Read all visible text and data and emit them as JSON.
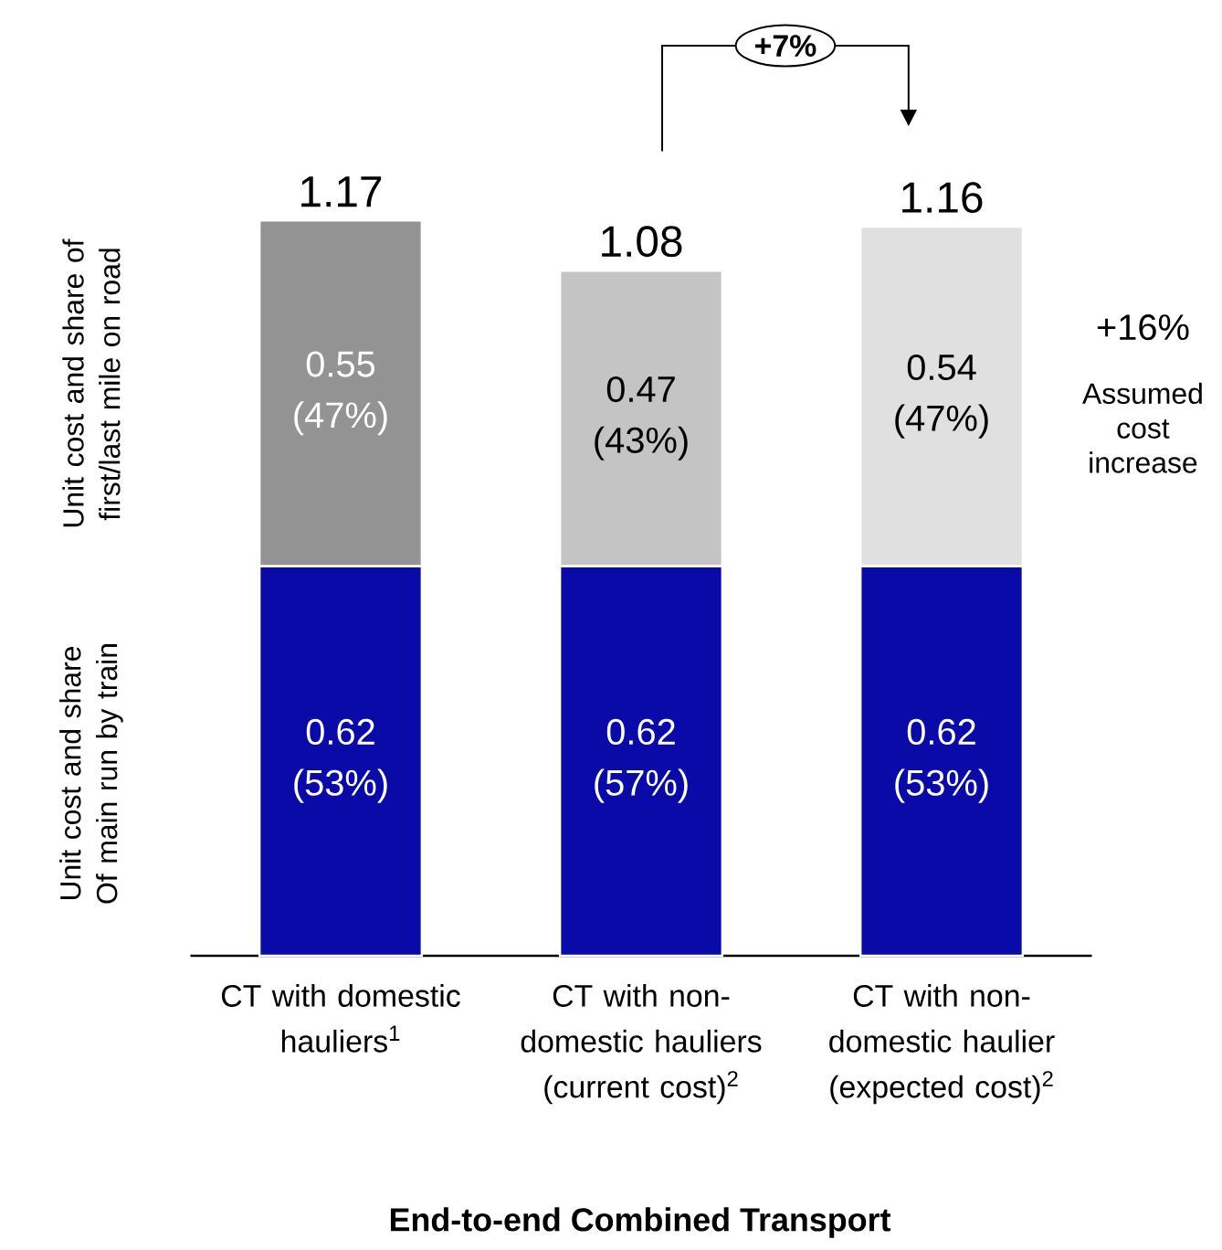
{
  "chart_data": {
    "type": "bar",
    "stacked": true,
    "xlabel": "**End-to-end Combined Transport**",
    "categories": [
      "CT with domestic hauliers$^{1}$",
      "CT with non- domestic hauliers (current cost)$^{2}$",
      "CT with non-domestic haulier (expected cost)$^{2}$"
    ],
    "series": [
      {
        "color": "#0a0aa8",
        "values": [
          0.62,
          0.62,
          0.62
        ],
        "value_labels": [
          "0.62 (53%)",
          "0.62 (57%)",
          "0.62 (53%)"
        ]
      },
      {
        "colors": [
          "#939393",
          "#c4c4c4",
          "#e0e0e0"
        ],
        "values": [
          0.55,
          0.47,
          0.54
        ],
        "value_labels": [
          "0.55 (47%)",
          "0.47 (43%)",
          "0.54 (47%)"
        ]
      }
    ],
    "totals": [
      "1.17",
      "1.08",
      "1.16"
    ],
    "annotations": [
      "+7%",
      "+16%",
      "Assumed cost increase",
      "Unit cost and share of first/last mile on road",
      "Unit cost and share Of main run by train"
    ]
  }
}
